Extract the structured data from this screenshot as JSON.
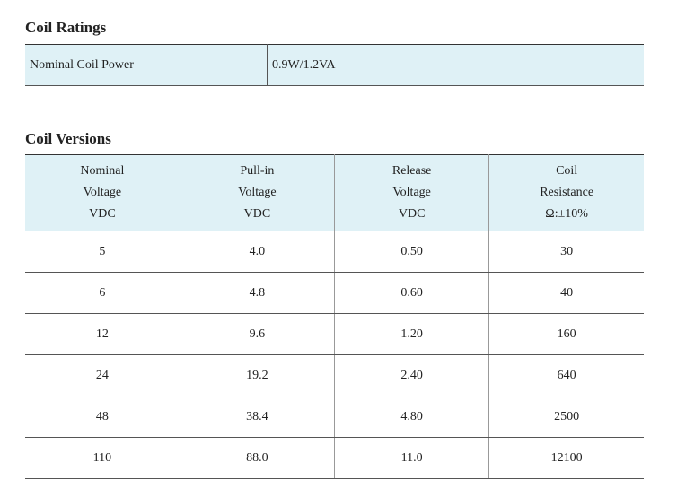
{
  "ratings": {
    "title": "Coil Ratings",
    "rows": [
      [
        "Nominal Coil Power",
        "0.9W/1.2VA"
      ]
    ]
  },
  "versions": {
    "title": "Coil Versions",
    "header": [
      [
        "Nominal",
        "Voltage",
        "VDC"
      ],
      [
        "Pull-in",
        "Voltage",
        "VDC"
      ],
      [
        "Release",
        "Voltage",
        "VDC"
      ],
      [
        "Coil",
        "Resistance",
        "Ω:±10%"
      ]
    ],
    "rows": [
      [
        "5",
        "4.0",
        "0.50",
        "30"
      ],
      [
        "6",
        "4.8",
        "0.60",
        "40"
      ],
      [
        "12",
        "9.6",
        "1.20",
        "160"
      ],
      [
        "24",
        "19.2",
        "2.40",
        "640"
      ],
      [
        "48",
        "38.4",
        "4.80",
        "2500"
      ],
      [
        "110",
        "88.0",
        "11.0",
        "12100"
      ]
    ]
  }
}
